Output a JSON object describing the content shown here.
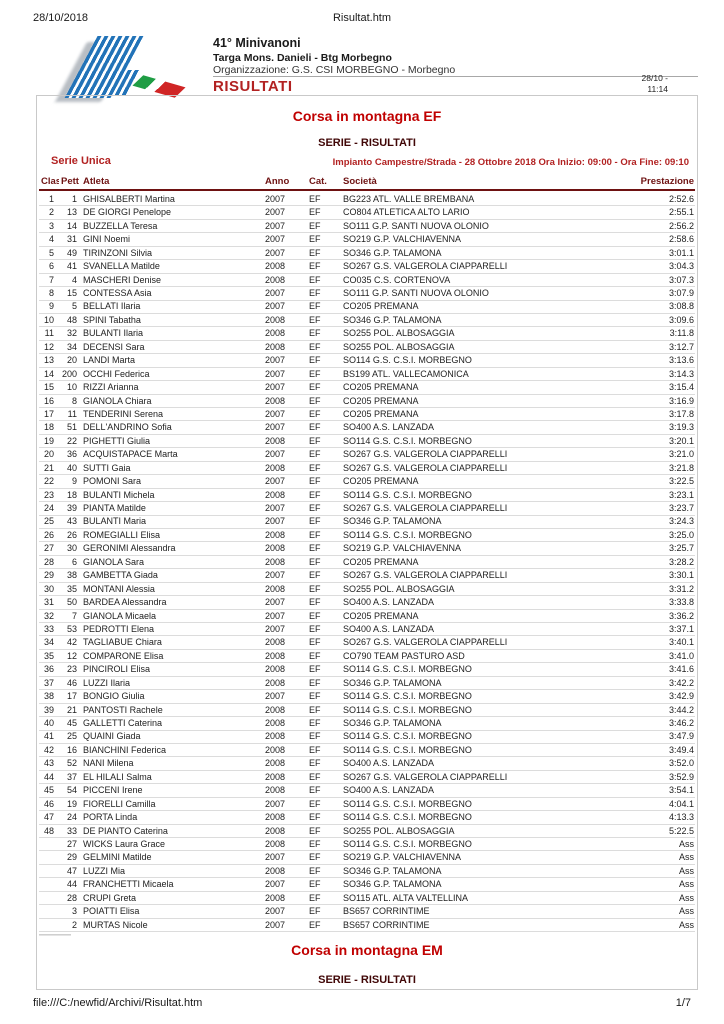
{
  "page": {
    "print_date": "28/10/2018",
    "doc_title": "Risultat.htm",
    "footer_url": "file:///C:/newfid/Archivi/Risultat.htm",
    "page_number": "1/7"
  },
  "header": {
    "event_title": "41° Minivanoni",
    "event_subtitle": "Targa Mons. Danieli - Btg Morbegno",
    "organization": "Organizzazione: G.S. CSI MORBEGNO - Morbegno",
    "results_label": "RISULTATI",
    "timestamp_line1": "28/10 -",
    "timestamp_line2": "11:14"
  },
  "section": {
    "title": "Corsa in montagna EF",
    "subtitle": "SERIE - RISULTATI",
    "series_label": "Serie Unica",
    "series_info": "Impianto Campestre/Strada - 28 Ottobre 2018 Ora Inizio: 09:00 - Ora Fine: 09:10"
  },
  "table": {
    "headers": {
      "clas": "Clas.",
      "pett": "Pett.",
      "atleta": "Atleta",
      "anno": "Anno",
      "cat": "Cat.",
      "societa": "Società",
      "prestazione": "Prestazione"
    },
    "rows": [
      [
        "1",
        "1",
        "GHISALBERTI Martina",
        "2007",
        "EF",
        "BG223 ATL. VALLE BREMBANA",
        "2:52.6"
      ],
      [
        "2",
        "13",
        "DE GIORGI Penelope",
        "2007",
        "EF",
        "CO804 ATLETICA ALTO LARIO",
        "2:55.1"
      ],
      [
        "3",
        "14",
        "BUZZELLA Teresa",
        "2007",
        "EF",
        "SO111 G.P. SANTI NUOVA OLONIO",
        "2:56.2"
      ],
      [
        "4",
        "31",
        "GINI Noemi",
        "2007",
        "EF",
        "SO219 G.P. VALCHIAVENNA",
        "2:58.6"
      ],
      [
        "5",
        "49",
        "TIRINZONI Silvia",
        "2007",
        "EF",
        "SO346 G.P. TALAMONA",
        "3:01.1"
      ],
      [
        "6",
        "41",
        "SVANELLA Matilde",
        "2008",
        "EF",
        "SO267 G.S. VALGEROLA CIAPPARELLI",
        "3:04.3"
      ],
      [
        "7",
        "4",
        "MASCHERI Denise",
        "2008",
        "EF",
        "CO035 C.S. CORTENOVA",
        "3:07.3"
      ],
      [
        "8",
        "15",
        "CONTESSA Asia",
        "2007",
        "EF",
        "SO111 G.P. SANTI NUOVA OLONIO",
        "3:07.9"
      ],
      [
        "9",
        "5",
        "BELLATI Ilaria",
        "2007",
        "EF",
        "CO205 PREMANA",
        "3:08.8"
      ],
      [
        "10",
        "48",
        "SPINI Tabatha",
        "2008",
        "EF",
        "SO346 G.P. TALAMONA",
        "3:09.6"
      ],
      [
        "11",
        "32",
        "BULANTI Ilaria",
        "2008",
        "EF",
        "SO255 POL. ALBOSAGGIA",
        "3:11.8"
      ],
      [
        "12",
        "34",
        "DECENSI Sara",
        "2008",
        "EF",
        "SO255 POL. ALBOSAGGIA",
        "3:12.7"
      ],
      [
        "13",
        "20",
        "LANDI Marta",
        "2007",
        "EF",
        "SO114 G.S. C.S.I. MORBEGNO",
        "3:13.6"
      ],
      [
        "14",
        "200",
        "OCCHI Federica",
        "2007",
        "EF",
        "BS199 ATL. VALLECAMONICA",
        "3:14.3"
      ],
      [
        "15",
        "10",
        "RIZZI Arianna",
        "2007",
        "EF",
        "CO205 PREMANA",
        "3:15.4"
      ],
      [
        "16",
        "8",
        "GIANOLA Chiara",
        "2008",
        "EF",
        "CO205 PREMANA",
        "3:16.9"
      ],
      [
        "17",
        "11",
        "TENDERINI Serena",
        "2007",
        "EF",
        "CO205 PREMANA",
        "3:17.8"
      ],
      [
        "18",
        "51",
        "DELL'ANDRINO Sofia",
        "2007",
        "EF",
        "SO400 A.S. LANZADA",
        "3:19.3"
      ],
      [
        "19",
        "22",
        "PIGHETTI Giulia",
        "2008",
        "EF",
        "SO114 G.S. C.S.I. MORBEGNO",
        "3:20.1"
      ],
      [
        "20",
        "36",
        "ACQUISTAPACE Marta",
        "2007",
        "EF",
        "SO267 G.S. VALGEROLA CIAPPARELLI",
        "3:21.0"
      ],
      [
        "21",
        "40",
        "SUTTI Gaia",
        "2008",
        "EF",
        "SO267 G.S. VALGEROLA CIAPPARELLI",
        "3:21.8"
      ],
      [
        "22",
        "9",
        "POMONI Sara",
        "2007",
        "EF",
        "CO205 PREMANA",
        "3:22.5"
      ],
      [
        "23",
        "18",
        "BULANTI Michela",
        "2008",
        "EF",
        "SO114 G.S. C.S.I. MORBEGNO",
        "3:23.1"
      ],
      [
        "24",
        "39",
        "PIANTA Matilde",
        "2007",
        "EF",
        "SO267 G.S. VALGEROLA CIAPPARELLI",
        "3:23.7"
      ],
      [
        "25",
        "43",
        "BULANTI Maria",
        "2007",
        "EF",
        "SO346 G.P. TALAMONA",
        "3:24.3"
      ],
      [
        "26",
        "26",
        "ROMEGIALLI Elisa",
        "2008",
        "EF",
        "SO114 G.S. C.S.I. MORBEGNO",
        "3:25.0"
      ],
      [
        "27",
        "30",
        "GERONIMI Alessandra",
        "2008",
        "EF",
        "SO219 G.P. VALCHIAVENNA",
        "3:25.7"
      ],
      [
        "28",
        "6",
        "GIANOLA Sara",
        "2008",
        "EF",
        "CO205 PREMANA",
        "3:28.2"
      ],
      [
        "29",
        "38",
        "GAMBETTA Giada",
        "2007",
        "EF",
        "SO267 G.S. VALGEROLA CIAPPARELLI",
        "3:30.1"
      ],
      [
        "30",
        "35",
        "MONTANI Alessia",
        "2008",
        "EF",
        "SO255 POL. ALBOSAGGIA",
        "3:31.2"
      ],
      [
        "31",
        "50",
        "BARDEA Alessandra",
        "2007",
        "EF",
        "SO400 A.S. LANZADA",
        "3:33.8"
      ],
      [
        "32",
        "7",
        "GIANOLA Micaela",
        "2007",
        "EF",
        "CO205 PREMANA",
        "3:36.2"
      ],
      [
        "33",
        "53",
        "PEDROTTI Elena",
        "2007",
        "EF",
        "SO400 A.S. LANZADA",
        "3:37.1"
      ],
      [
        "34",
        "42",
        "TAGLIABUE Chiara",
        "2008",
        "EF",
        "SO267 G.S. VALGEROLA CIAPPARELLI",
        "3:40.1"
      ],
      [
        "35",
        "12",
        "COMPARONE Elisa",
        "2008",
        "EF",
        "CO790 TEAM PASTURO ASD",
        "3:41.0"
      ],
      [
        "36",
        "23",
        "PINCIROLI Elisa",
        "2008",
        "EF",
        "SO114 G.S. C.S.I. MORBEGNO",
        "3:41.6"
      ],
      [
        "37",
        "46",
        "LUZZI Ilaria",
        "2008",
        "EF",
        "SO346 G.P. TALAMONA",
        "3:42.2"
      ],
      [
        "38",
        "17",
        "BONGIO Giulia",
        "2007",
        "EF",
        "SO114 G.S. C.S.I. MORBEGNO",
        "3:42.9"
      ],
      [
        "39",
        "21",
        "PANTOSTI Rachele",
        "2008",
        "EF",
        "SO114 G.S. C.S.I. MORBEGNO",
        "3:44.2"
      ],
      [
        "40",
        "45",
        "GALLETTI Caterina",
        "2008",
        "EF",
        "SO346 G.P. TALAMONA",
        "3:46.2"
      ],
      [
        "41",
        "25",
        "QUAINI Giada",
        "2008",
        "EF",
        "SO114 G.S. C.S.I. MORBEGNO",
        "3:47.9"
      ],
      [
        "42",
        "16",
        "BIANCHINI Federica",
        "2008",
        "EF",
        "SO114 G.S. C.S.I. MORBEGNO",
        "3:49.4"
      ],
      [
        "43",
        "52",
        "NANI Milena",
        "2008",
        "EF",
        "SO400 A.S. LANZADA",
        "3:52.0"
      ],
      [
        "44",
        "37",
        "EL HILALI Salma",
        "2008",
        "EF",
        "SO267 G.S. VALGEROLA CIAPPARELLI",
        "3:52.9"
      ],
      [
        "45",
        "54",
        "PICCENI Irene",
        "2008",
        "EF",
        "SO400 A.S. LANZADA",
        "3:54.1"
      ],
      [
        "46",
        "19",
        "FIORELLI Camilla",
        "2007",
        "EF",
        "SO114 G.S. C.S.I. MORBEGNO",
        "4:04.1"
      ],
      [
        "47",
        "24",
        "PORTA Linda",
        "2008",
        "EF",
        "SO114 G.S. C.S.I. MORBEGNO",
        "4:13.3"
      ],
      [
        "48",
        "33",
        "DE PIANTO Caterina",
        "2008",
        "EF",
        "SO255 POL. ALBOSAGGIA",
        "5:22.5"
      ],
      [
        "",
        "27",
        "WICKS Laura Grace",
        "2008",
        "EF",
        "SO114 G.S. C.S.I. MORBEGNO",
        "Ass"
      ],
      [
        "",
        "29",
        "GELMINI Matilde",
        "2007",
        "EF",
        "SO219 G.P. VALCHIAVENNA",
        "Ass"
      ],
      [
        "",
        "47",
        "LUZZI Mia",
        "2008",
        "EF",
        "SO346 G.P. TALAMONA",
        "Ass"
      ],
      [
        "",
        "44",
        "FRANCHETTI Micaela",
        "2007",
        "EF",
        "SO346 G.P. TALAMONA",
        "Ass"
      ],
      [
        "",
        "28",
        "CRUPI Greta",
        "2008",
        "EF",
        "SO115 ATL. ALTA VALTELLINA",
        "Ass"
      ],
      [
        "",
        "3",
        "POIATTI Elisa",
        "2007",
        "EF",
        "BS657 CORRINTIME",
        "Ass"
      ],
      [
        "",
        "2",
        "MURTAS Nicole",
        "2007",
        "EF",
        "BS657 CORRINTIME",
        "Ass"
      ]
    ]
  },
  "next_section": {
    "title": "Corsa in montagna EM",
    "subtitle": "SERIE - RISULTATI"
  },
  "colors": {
    "section_red": "#c00000",
    "crimson": "#b22222",
    "dark_maroon": "#400606",
    "table_header_maroon": "#6e1212",
    "logo_blue": "#2273b8",
    "flag_green": "#1f9d44",
    "flag_red": "#d02525"
  }
}
